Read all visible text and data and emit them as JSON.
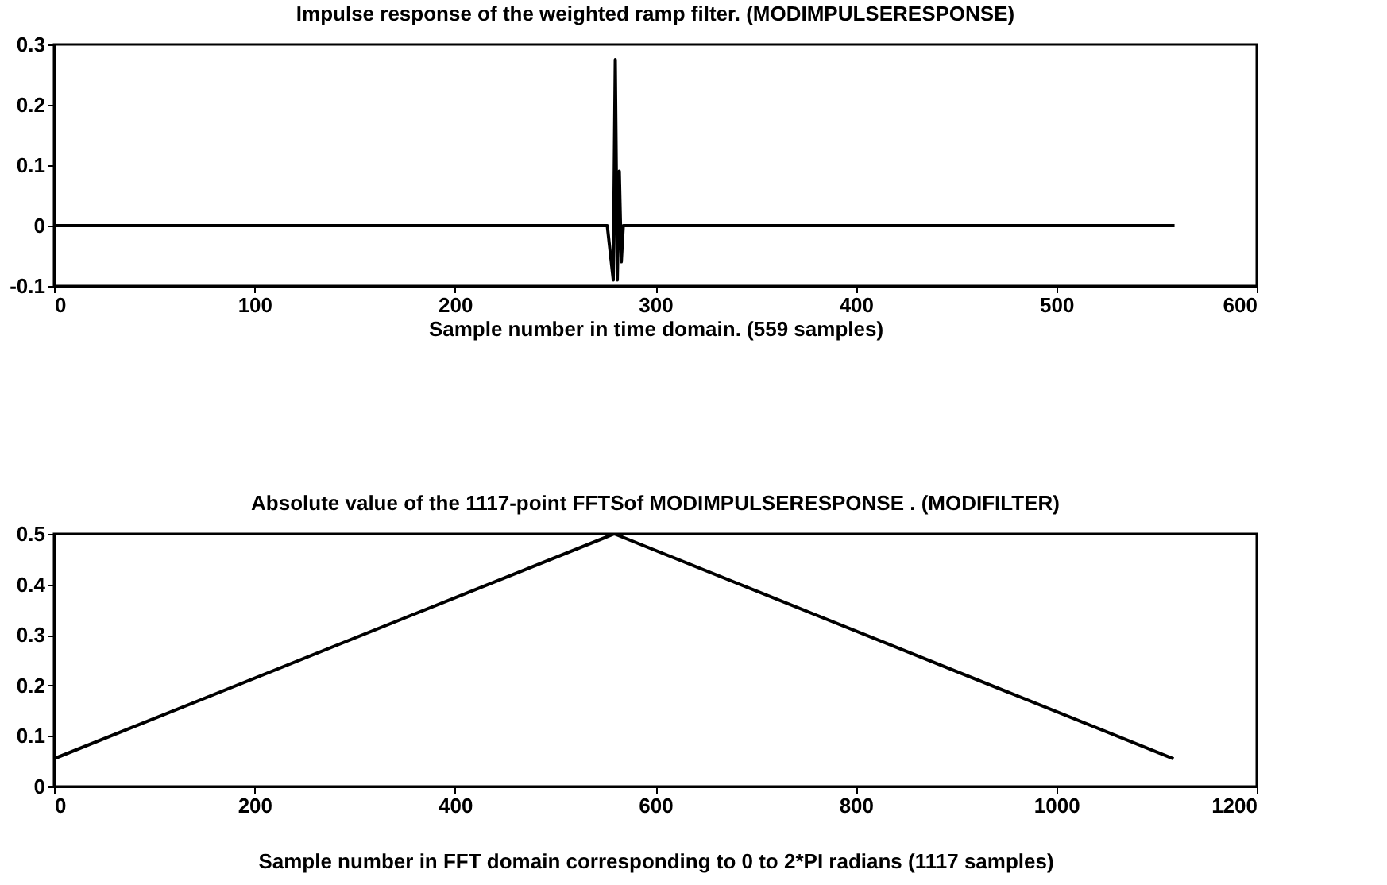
{
  "chart_data": [
    {
      "type": "line",
      "title": "Impulse response of the weighted ramp filter.  (MODIMPULSERESPONSE)",
      "xlabel": "Sample number in time domain. (559 samples)",
      "x": [
        0,
        100,
        200,
        276,
        277,
        278,
        279,
        280,
        281,
        282,
        283,
        284,
        300,
        400,
        500,
        559
      ],
      "values": [
        0,
        0,
        0,
        0,
        -0.03,
        -0.06,
        -0.09,
        0.275,
        -0.09,
        0.09,
        -0.06,
        0,
        0,
        0,
        0,
        0
      ],
      "color": "#000000",
      "xlim": [
        0,
        600
      ],
      "xticks": [
        0,
        100,
        200,
        300,
        400,
        500,
        600
      ],
      "ylim": [
        -0.1,
        0.3
      ],
      "yticks": [
        -0.1,
        0,
        0.1,
        0.2,
        0.3
      ]
    },
    {
      "type": "line",
      "title": "Absolute value of the 1117-point FFTSof MODIMPULSERESPONSE . (MODIFILTER)",
      "xlabel": "Sample number  in FFT domain corresponding to 0 to 2*PI radians (1117 samples)",
      "x": [
        0,
        559,
        1117
      ],
      "values": [
        0.055,
        0.5,
        0.055
      ],
      "color": "#000000",
      "xlim": [
        0,
        1200
      ],
      "xticks": [
        0,
        200,
        400,
        600,
        800,
        1000,
        1200
      ],
      "ylim": [
        0,
        0.5
      ],
      "yticks": [
        0,
        0.1,
        0.2,
        0.3,
        0.4,
        0.5
      ]
    }
  ]
}
